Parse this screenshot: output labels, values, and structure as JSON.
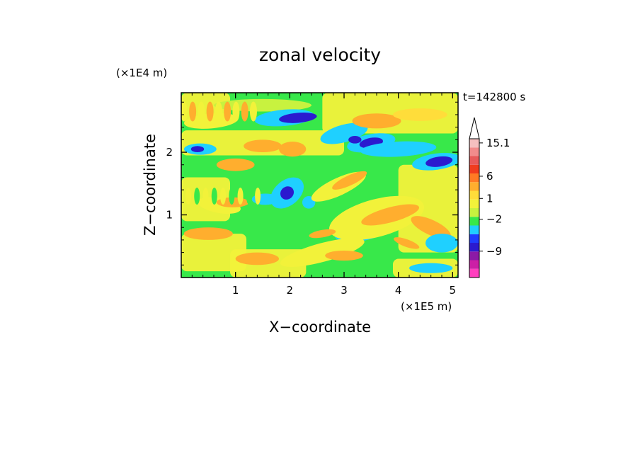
{
  "chart_data": {
    "type": "heatmap",
    "title": "zonal velocity",
    "xlabel": "X−coordinate",
    "ylabel": "Z−coordinate",
    "x_unit": "(×1E5 m)",
    "y_unit": "(×1E4 m)",
    "time_label": "t=142800 s",
    "xlim": [
      0,
      5.1
    ],
    "ylim": [
      0,
      2.95
    ],
    "x_ticks": [
      "1",
      "2",
      "3",
      "4",
      "5"
    ],
    "y_ticks": [
      "1",
      "2"
    ],
    "colorbar": {
      "labels": [
        "15.1",
        "6",
        "1",
        "−2",
        "−9"
      ],
      "label_values": [
        15.1,
        6,
        1,
        -2,
        -9
      ],
      "colors": [
        "#ff3fbf",
        "#cc1fa6",
        "#8c1aa6",
        "#2b1acf",
        "#1f3dff",
        "#1fd0ff",
        "#38e84a",
        "#c8f23f",
        "#f2f23a",
        "#ffdd3a",
        "#ffae2e",
        "#ff7a24",
        "#f03c1e",
        "#e85a5a",
        "#f28c8c",
        "#f5c0c0"
      ],
      "extend": "max"
    },
    "grid": false
  }
}
